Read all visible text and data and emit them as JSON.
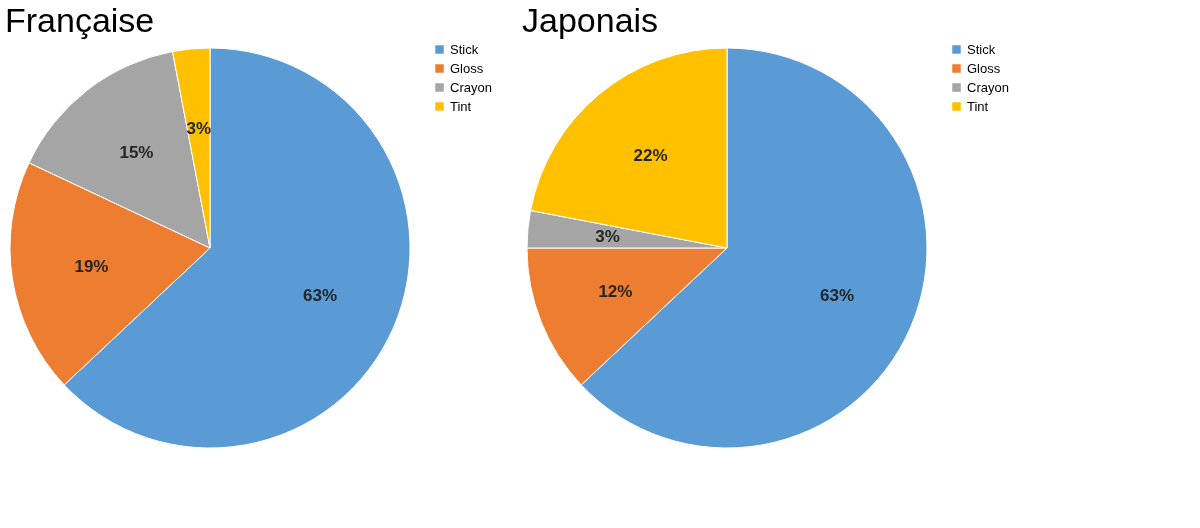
{
  "chart_data": [
    {
      "type": "pie",
      "title": "Française",
      "categories": [
        "Stick",
        "Gloss",
        "Crayon",
        "Tint"
      ],
      "values": [
        63,
        19,
        15,
        3
      ],
      "colors": [
        "#5b9bd5",
        "#ed7d31",
        "#a5a5a5",
        "#ffc000"
      ],
      "value_labels": [
        "63%",
        "19%",
        "15%",
        "3%"
      ],
      "legend": "right"
    },
    {
      "type": "pie",
      "title": "Japonais",
      "categories": [
        "Stick",
        "Gloss",
        "Crayon",
        "Tint"
      ],
      "values": [
        63,
        12,
        3,
        22
      ],
      "colors": [
        "#5b9bd5",
        "#ed7d31",
        "#a5a5a5",
        "#ffc000"
      ],
      "value_labels": [
        "63%",
        "12%",
        "3%",
        "22%"
      ],
      "legend": "right"
    }
  ]
}
